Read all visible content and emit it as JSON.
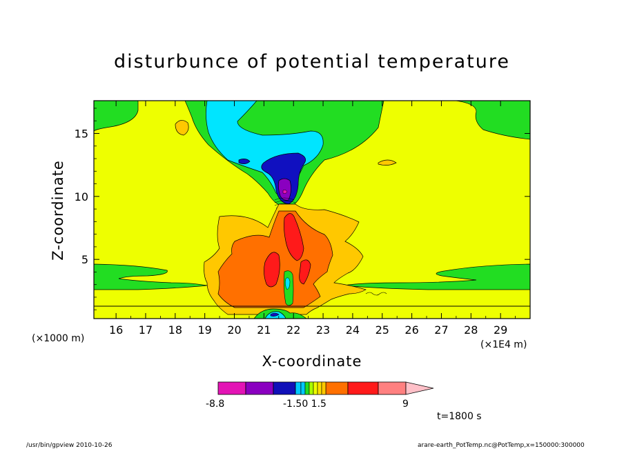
{
  "chart_data": {
    "type": "contour",
    "title": "disturbunce of potential temperature",
    "xlabel": "X-coordinate",
    "ylabel": "Z-coordinate",
    "x_unit_label": "(×1000 m)",
    "x_scale_label": "(×1E4 m)",
    "xlim": [
      15.25,
      30.0
    ],
    "ylim": [
      0.3,
      17.6
    ],
    "x_ticks": [
      16,
      17,
      18,
      19,
      20,
      21,
      22,
      23,
      24,
      25,
      26,
      27,
      28,
      29
    ],
    "y_ticks": [
      5,
      10,
      15
    ],
    "legend": {
      "labels": [
        "-8.8",
        "-1.50 1.5",
        "9"
      ],
      "colors": [
        "#e314b5",
        "#8a00c0",
        "#1010b8",
        "#00c8ff",
        "#22dd22",
        "#eeff00",
        "#ffc800",
        "#ff7000",
        "#ff1a1a",
        "#ff8080",
        "#ffc0c8"
      ]
    },
    "annotation_time": "t=1800 s",
    "footer_left": "/usr/bin/gpview   2010-10-26",
    "footer_right": "arare-earth_PotTemp.nc@PotTemp,x=150000:300000",
    "colors": {
      "background_field": "#eeff00",
      "near_zero_negative": "#22dd22",
      "cyan": "#00e5ff",
      "blue": "#1010c0",
      "purple": "#8a00c0",
      "magenta": "#e314b5",
      "orange_light": "#ffc800",
      "orange": "#ff7000",
      "red": "#ff1a1a"
    }
  }
}
